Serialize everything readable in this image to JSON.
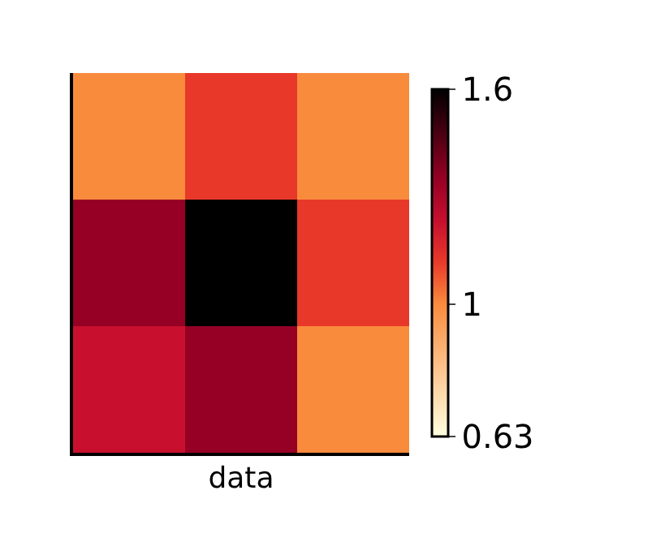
{
  "chart_data": {
    "type": "heatmap",
    "xlabel": "data",
    "categories": [
      null,
      null,
      null
    ],
    "y_categories": [
      null,
      null,
      null
    ],
    "cells": [
      [
        1.0,
        1.12,
        1.0
      ],
      [
        1.35,
        1.6,
        1.12
      ],
      [
        1.23,
        1.35,
        1.0
      ]
    ],
    "clim": [
      0.63,
      1.6
    ],
    "cticks": [
      0.63,
      1,
      1.6
    ],
    "tick_labels": false
  }
}
